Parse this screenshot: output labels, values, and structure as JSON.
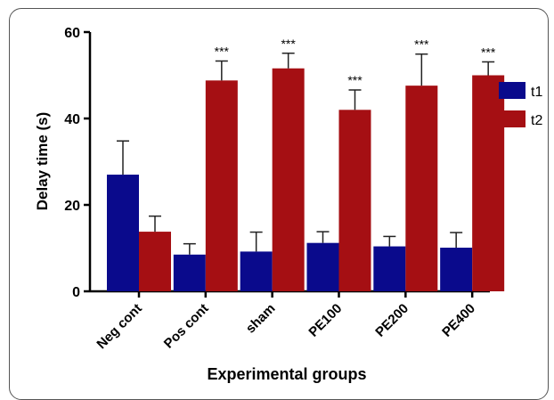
{
  "chart_data": {
    "type": "bar",
    "xlabel": "Experimental groups",
    "ylabel": "Delay time (s)",
    "ylim": [
      0,
      60
    ],
    "yticks": [
      0,
      20,
      40,
      60
    ],
    "categories": [
      "Neg cont",
      "Pos cont",
      "sham",
      "PE100",
      "PE200",
      "PE400"
    ],
    "series": [
      {
        "name": "t1",
        "color": "#0a0a8c",
        "values": [
          27,
          8.5,
          9.2,
          11.2,
          10.4,
          10.1
        ],
        "errors": [
          7.8,
          2.5,
          4.5,
          2.6,
          2.3,
          3.5
        ]
      },
      {
        "name": "t2",
        "color": "#a50f13",
        "values": [
          13.8,
          48.8,
          51.6,
          42,
          47.6,
          50
        ],
        "errors": [
          3.6,
          4.5,
          3.5,
          4.6,
          7.3,
          3.1
        ]
      }
    ],
    "annotations": [
      "",
      "***",
      "***",
      "***",
      "***",
      "***"
    ],
    "legend_position": "right",
    "error_bars": "upper"
  }
}
